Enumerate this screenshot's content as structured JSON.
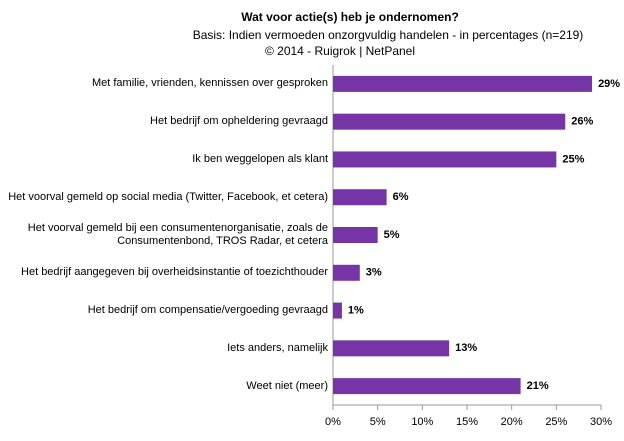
{
  "chart_data": {
    "type": "hbar",
    "title": "Wat voor actie(s) heb je ondernomen?",
    "subtitle": "Basis: Indien vermoeden onzorgvuldig handelen - in percentages (n=219)",
    "source": "© 2014 - Ruigrok | NetPanel",
    "categories": [
      "Met familie, vrienden, kennissen over gesproken",
      "Het bedrijf om opheldering gevraagd",
      "Ik ben weggelopen als klant",
      "Het voorval gemeld op social media (Twitter, Facebook, et cetera)",
      "Het voorval gemeld bij een consumentenorganisatie, zoals de Consumentenbond, TROS Radar, et cetera",
      "Het bedrijf aangegeven bij overheidsinstantie of toezichthouder",
      "Het bedrijf om compensatie/vergoeding gevraagd",
      "Iets anders, namelijk",
      "Weet niet (meer)"
    ],
    "values": [
      29,
      26,
      25,
      6,
      5,
      3,
      1,
      13,
      21
    ],
    "value_labels": [
      "29%",
      "26%",
      "25%",
      "6%",
      "5%",
      "3%",
      "1%",
      "13%",
      "21%"
    ],
    "color": "#7535a6",
    "xlim": [
      0,
      30
    ],
    "xticks": [
      {
        "value": 0,
        "label": "0%"
      },
      {
        "value": 5,
        "label": "5%"
      },
      {
        "value": 10,
        "label": "10%"
      },
      {
        "value": 15,
        "label": "15%"
      },
      {
        "value": 20,
        "label": "20%"
      },
      {
        "value": 25,
        "label": "25%"
      },
      {
        "value": 30,
        "label": "30%"
      }
    ],
    "grid": false
  }
}
